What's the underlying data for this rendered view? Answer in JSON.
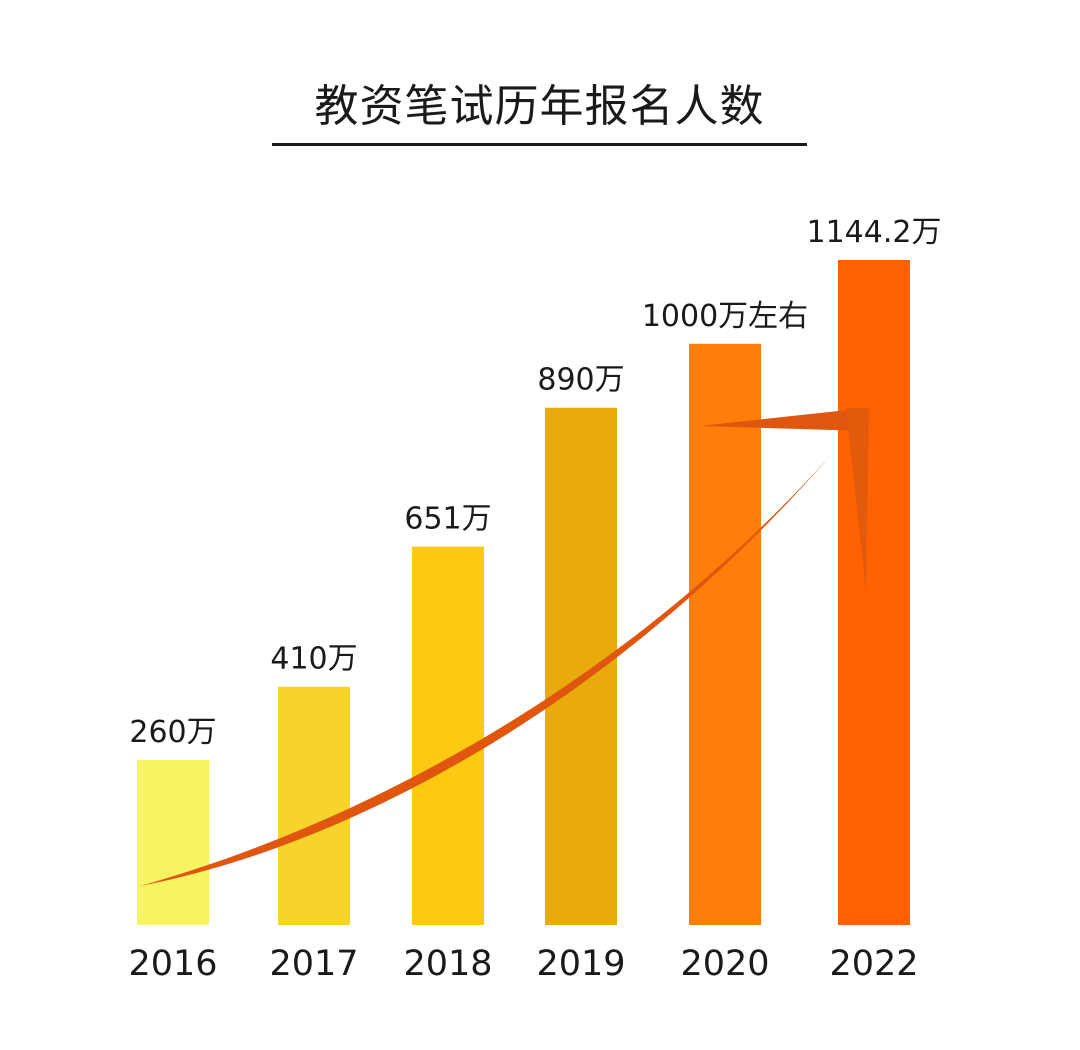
{
  "chart_data": {
    "type": "bar",
    "title": "教资笔试历年报名人数",
    "xlabel": "",
    "ylabel": "",
    "categories": [
      "2016",
      "2017",
      "2018",
      "2019",
      "2020",
      "2022"
    ],
    "values": [
      260,
      410,
      651,
      890,
      1000,
      1144.2
    ],
    "data_labels": [
      "260万",
      "410万",
      "651万",
      "890万",
      "1000万左右",
      "1144.2万"
    ],
    "unit": "万",
    "grid": false,
    "axes_visible": false,
    "bar_colors": [
      "#f7f463",
      "#f7d42c",
      "#fcca12",
      "#e8aa0c",
      "#fd7e0a",
      "#ff6200"
    ],
    "trend_arrow_color": "#e0560f"
  }
}
